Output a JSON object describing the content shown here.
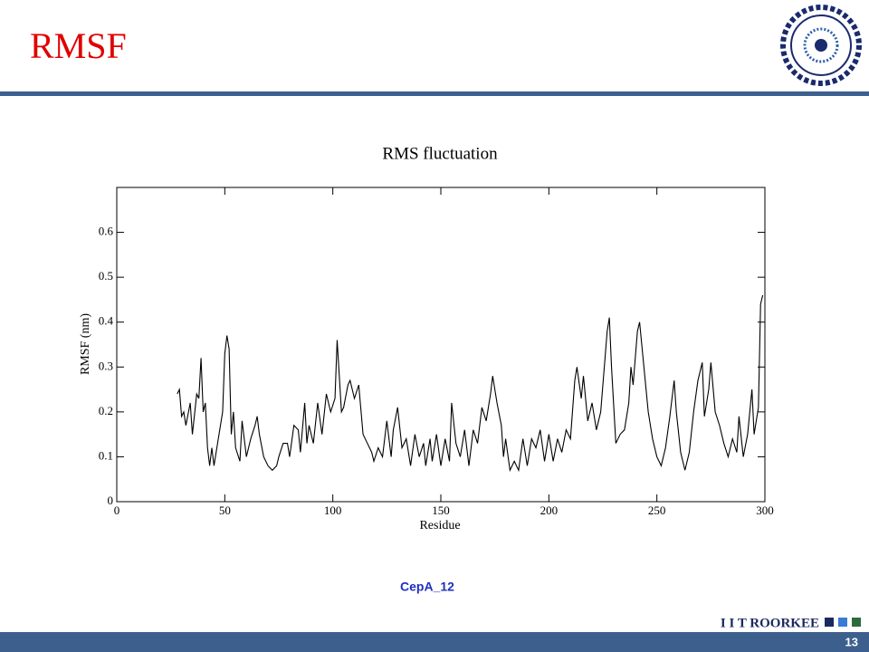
{
  "slide": {
    "title": "RMSF",
    "caption": "CepA_12",
    "footer": "I I T ROORKEE",
    "page": "13"
  },
  "chart_data": {
    "type": "line",
    "title": "RMS fluctuation",
    "x_label": "Residue",
    "y_label": "RMSF (nm)",
    "color": "#000000",
    "xlim": [
      0,
      300
    ],
    "ylim": [
      0,
      0.7
    ],
    "xticks": [
      0,
      50,
      100,
      150,
      200,
      250,
      300
    ],
    "yticks": [
      0,
      0.1,
      0.2,
      0.3,
      0.4,
      0.5,
      0.6
    ],
    "x": [
      28,
      29,
      30,
      31,
      32,
      34,
      35,
      37,
      38,
      39,
      40,
      41,
      42,
      43,
      44,
      45,
      47,
      49,
      50,
      51,
      52,
      53,
      54,
      55,
      57,
      58,
      60,
      62,
      64,
      65,
      66,
      68,
      70,
      72,
      74,
      75,
      77,
      79,
      80,
      82,
      84,
      85,
      87,
      88,
      89,
      91,
      93,
      95,
      97,
      99,
      101,
      102,
      103,
      104,
      105,
      107,
      108,
      110,
      112,
      114,
      116,
      118,
      119,
      121,
      123,
      125,
      127,
      128,
      130,
      132,
      134,
      136,
      138,
      140,
      142,
      143,
      145,
      146,
      148,
      150,
      152,
      154,
      155,
      157,
      159,
      161,
      163,
      165,
      167,
      169,
      171,
      173,
      174,
      176,
      178,
      179,
      180,
      182,
      184,
      186,
      188,
      190,
      192,
      194,
      196,
      198,
      200,
      202,
      204,
      206,
      208,
      210,
      212,
      213,
      215,
      216,
      218,
      220,
      222,
      224,
      226,
      227,
      228,
      229,
      231,
      233,
      235,
      237,
      238,
      239,
      241,
      242,
      244,
      246,
      248,
      250,
      252,
      254,
      256,
      258,
      259,
      261,
      263,
      265,
      267,
      269,
      271,
      272,
      274,
      275,
      277,
      279,
      281,
      283,
      285,
      287,
      288,
      290,
      292,
      294,
      295,
      297,
      298,
      299
    ],
    "values": [
      0.24,
      0.25,
      0.19,
      0.2,
      0.17,
      0.22,
      0.15,
      0.24,
      0.23,
      0.32,
      0.2,
      0.22,
      0.12,
      0.08,
      0.12,
      0.08,
      0.14,
      0.2,
      0.33,
      0.37,
      0.34,
      0.15,
      0.2,
      0.12,
      0.09,
      0.18,
      0.1,
      0.14,
      0.17,
      0.19,
      0.15,
      0.1,
      0.08,
      0.07,
      0.08,
      0.1,
      0.13,
      0.13,
      0.1,
      0.17,
      0.16,
      0.11,
      0.22,
      0.13,
      0.17,
      0.13,
      0.22,
      0.15,
      0.24,
      0.2,
      0.23,
      0.36,
      0.28,
      0.2,
      0.21,
      0.26,
      0.27,
      0.23,
      0.26,
      0.15,
      0.13,
      0.11,
      0.09,
      0.12,
      0.1,
      0.18,
      0.1,
      0.16,
      0.21,
      0.12,
      0.14,
      0.08,
      0.15,
      0.1,
      0.13,
      0.08,
      0.14,
      0.09,
      0.15,
      0.08,
      0.14,
      0.09,
      0.22,
      0.13,
      0.1,
      0.16,
      0.08,
      0.16,
      0.13,
      0.21,
      0.18,
      0.24,
      0.28,
      0.22,
      0.17,
      0.1,
      0.14,
      0.07,
      0.09,
      0.07,
      0.14,
      0.08,
      0.14,
      0.12,
      0.16,
      0.09,
      0.15,
      0.09,
      0.14,
      0.11,
      0.16,
      0.14,
      0.27,
      0.3,
      0.23,
      0.28,
      0.18,
      0.22,
      0.16,
      0.2,
      0.32,
      0.38,
      0.41,
      0.3,
      0.13,
      0.15,
      0.16,
      0.22,
      0.3,
      0.26,
      0.38,
      0.4,
      0.3,
      0.2,
      0.14,
      0.1,
      0.08,
      0.12,
      0.19,
      0.27,
      0.2,
      0.11,
      0.07,
      0.11,
      0.2,
      0.27,
      0.31,
      0.19,
      0.25,
      0.31,
      0.2,
      0.17,
      0.13,
      0.1,
      0.14,
      0.11,
      0.19,
      0.1,
      0.15,
      0.25,
      0.15,
      0.21,
      0.44,
      0.46
    ]
  }
}
